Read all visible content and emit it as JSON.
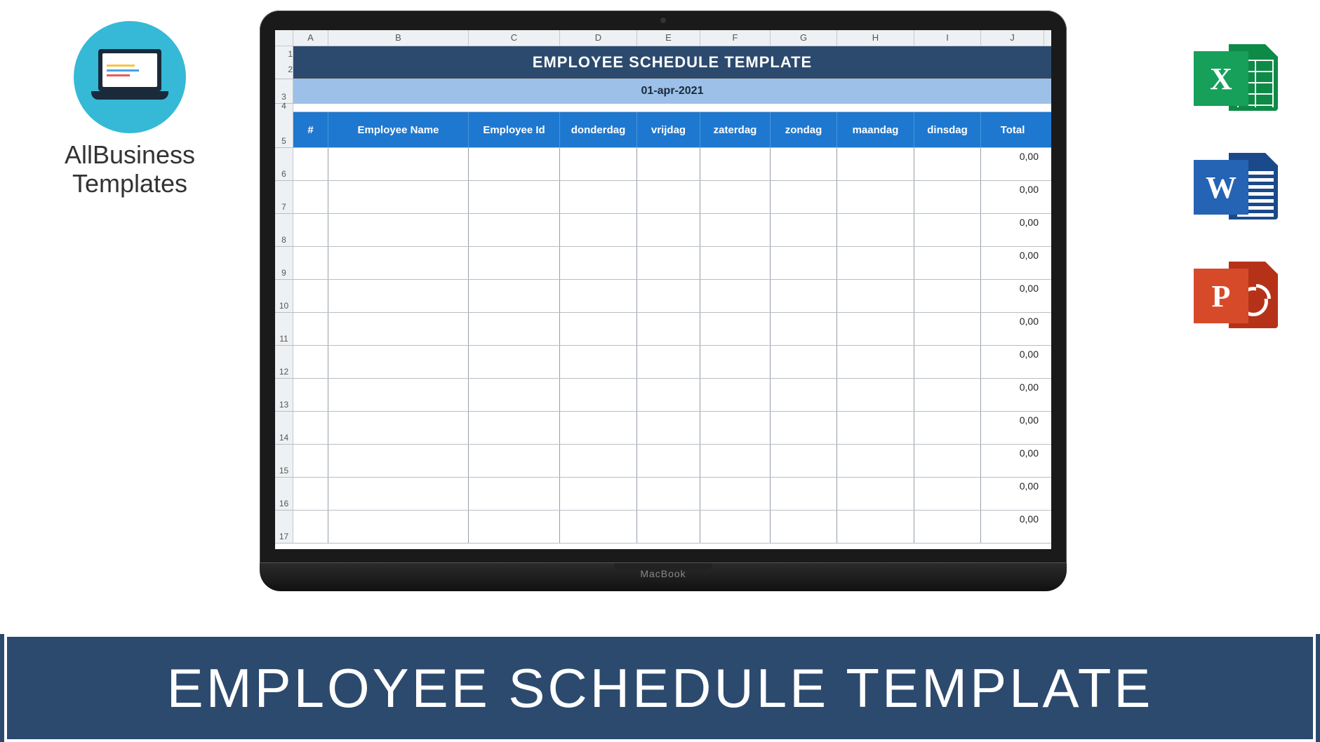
{
  "brand": {
    "line1": "AllBusiness",
    "line2": "Templates"
  },
  "banner_title": "EMPLOYEE SCHEDULE TEMPLATE",
  "laptop_label": "MacBook",
  "spreadsheet": {
    "cols": [
      "A",
      "B",
      "C",
      "D",
      "E",
      "F",
      "G",
      "H",
      "I",
      "J"
    ],
    "row_nums_title": [
      "1",
      "2"
    ],
    "row_num_date": "3",
    "row_num_small": "4",
    "row_num_hdr": "5",
    "title": "EMPLOYEE SCHEDULE TEMPLATE",
    "date": "01-apr-2021",
    "headers": [
      "#",
      "Employee Name",
      "Employee Id",
      "donderdag",
      "vrijdag",
      "zaterdag",
      "zondag",
      "maandag",
      "dinsdag",
      "Total"
    ],
    "col_classes": [
      "cA",
      "cB",
      "cC",
      "cD",
      "cE",
      "cF",
      "cG",
      "cH",
      "cI",
      "cJ"
    ],
    "data_rows": [
      {
        "num": "6",
        "total": "0,00"
      },
      {
        "num": "7",
        "total": "0,00"
      },
      {
        "num": "8",
        "total": "0,00"
      },
      {
        "num": "9",
        "total": "0,00"
      },
      {
        "num": "10",
        "total": "0,00"
      },
      {
        "num": "11",
        "total": "0,00"
      },
      {
        "num": "12",
        "total": "0,00"
      },
      {
        "num": "13",
        "total": "0,00"
      },
      {
        "num": "14",
        "total": "0,00"
      },
      {
        "num": "15",
        "total": "0,00"
      },
      {
        "num": "16",
        "total": "0,00"
      },
      {
        "num": "17",
        "total": "0,00"
      }
    ]
  },
  "file_icons": {
    "excel_letter": "X",
    "word_letter": "W",
    "ppt_letter": "P"
  },
  "colors": {
    "brand_circle": "#35b9d6",
    "title_band": "#2c4a6e",
    "date_band": "#9cc0e8",
    "header_band": "#1e78d0",
    "banner": "#2c4a6e",
    "excel": "#16a05a",
    "word": "#2563b5",
    "ppt": "#d64a2a"
  }
}
